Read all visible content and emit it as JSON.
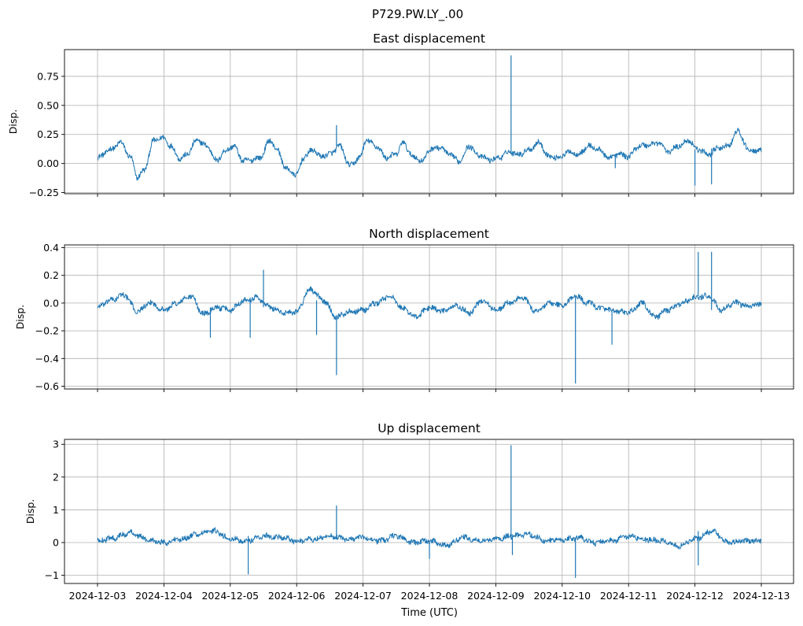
{
  "suptitle": "P729.PW.LY_.00",
  "xlabel": "Time (UTC)",
  "x_ticks": [
    "2024-12-03",
    "2024-12-04",
    "2024-12-05",
    "2024-12-06",
    "2024-12-07",
    "2024-12-08",
    "2024-12-09",
    "2024-12-10",
    "2024-12-11",
    "2024-12-12",
    "2024-12-13"
  ],
  "line_color": "#1f77b4",
  "chart_data": [
    {
      "type": "line",
      "title": "East displacement",
      "ylabel": "Disp.",
      "xlim": [
        "2024-12-02T21:36",
        "2024-12-13T02:24"
      ],
      "ylim": [
        -0.26,
        0.98
      ],
      "yticks": [
        -0.25,
        0.0,
        0.25,
        0.5,
        0.75
      ],
      "ytick_labels": [
        "−0.25",
        "0.00",
        "0.25",
        "0.50",
        "0.75"
      ],
      "grid": true,
      "x_days": [
        0.0,
        0.2,
        0.35,
        0.5,
        0.6,
        0.7,
        0.85,
        1.0,
        1.1,
        1.25,
        1.35,
        1.5,
        1.65,
        1.8,
        1.9,
        2.05,
        2.2,
        2.3,
        2.45,
        2.6,
        2.7,
        2.85,
        3.0,
        3.1,
        3.25,
        3.35,
        3.5,
        3.65,
        3.8,
        3.95,
        4.05,
        4.2,
        4.35,
        4.5,
        4.6,
        4.75,
        4.9,
        5.0,
        5.15,
        5.3,
        5.45,
        5.6,
        5.75,
        5.9,
        6.05,
        6.2,
        6.35,
        6.5,
        6.65,
        6.8,
        6.95,
        7.1,
        7.25,
        7.4,
        7.55,
        7.7,
        7.85,
        8.0,
        8.15,
        8.3,
        8.45,
        8.6,
        8.75,
        8.9,
        9.05,
        9.2,
        9.35,
        9.5,
        9.65,
        9.8,
        9.95,
        10.0
      ],
      "values": [
        0.05,
        0.12,
        0.18,
        0.05,
        -0.12,
        -0.06,
        0.2,
        0.22,
        0.15,
        0.04,
        0.08,
        0.2,
        0.15,
        0.02,
        0.1,
        0.15,
        0.02,
        0.03,
        0.05,
        0.2,
        0.12,
        -0.05,
        -0.1,
        0.05,
        0.12,
        0.06,
        0.08,
        0.15,
        -0.02,
        0.05,
        0.2,
        0.15,
        0.05,
        0.08,
        0.18,
        0.06,
        0.02,
        0.12,
        0.14,
        0.08,
        0.02,
        0.15,
        0.07,
        0.03,
        0.05,
        0.1,
        0.08,
        0.12,
        0.18,
        0.06,
        0.05,
        0.1,
        0.08,
        0.15,
        0.12,
        0.05,
        0.08,
        0.06,
        0.15,
        0.16,
        0.18,
        0.1,
        0.15,
        0.2,
        0.12,
        0.08,
        0.13,
        0.15,
        0.28,
        0.12,
        0.1,
        0.12
      ],
      "spikes": [
        {
          "x": 6.23,
          "y": 0.93
        },
        {
          "x": 9.0,
          "y": -0.19
        },
        {
          "x": 9.25,
          "y": -0.18
        },
        {
          "x": 3.6,
          "y": 0.33
        },
        {
          "x": 7.8,
          "y": -0.04
        }
      ]
    },
    {
      "type": "line",
      "title": "North displacement",
      "ylabel": "Disp.",
      "xlim": [
        "2024-12-02T21:36",
        "2024-12-13T02:24"
      ],
      "ylim": [
        -0.62,
        0.42
      ],
      "yticks": [
        -0.6,
        -0.4,
        -0.2,
        0.0,
        0.2,
        0.4
      ],
      "ytick_labels": [
        "−0.6",
        "−0.4",
        "−0.2",
        "0.0",
        "0.2",
        "0.4"
      ],
      "grid": true,
      "x_days": [
        0.0,
        0.2,
        0.4,
        0.6,
        0.8,
        1.0,
        1.2,
        1.4,
        1.6,
        1.8,
        2.0,
        2.2,
        2.4,
        2.6,
        2.8,
        3.0,
        3.2,
        3.4,
        3.6,
        3.8,
        4.0,
        4.2,
        4.4,
        4.6,
        4.8,
        5.0,
        5.2,
        5.4,
        5.6,
        5.8,
        6.0,
        6.2,
        6.4,
        6.6,
        6.8,
        7.0,
        7.2,
        7.4,
        7.6,
        7.8,
        8.0,
        8.2,
        8.4,
        8.6,
        8.8,
        9.0,
        9.2,
        9.4,
        9.6,
        9.8,
        10.0
      ],
      "values": [
        -0.03,
        0.02,
        0.06,
        -0.06,
        0.0,
        -0.05,
        0.0,
        0.05,
        -0.08,
        -0.03,
        -0.05,
        0.02,
        0.04,
        -0.03,
        -0.07,
        -0.06,
        0.1,
        0.02,
        -0.1,
        -0.06,
        -0.05,
        0.0,
        0.05,
        -0.04,
        -0.1,
        -0.03,
        -0.06,
        -0.02,
        -0.07,
        0.02,
        -0.05,
        0.0,
        0.04,
        -0.06,
        0.0,
        -0.02,
        0.05,
        0.0,
        -0.04,
        -0.06,
        -0.07,
        0.0,
        -0.1,
        -0.05,
        0.0,
        0.04,
        0.05,
        -0.05,
        0.0,
        -0.02,
        -0.01
      ],
      "spikes": [
        {
          "x": 3.6,
          "y": -0.52
        },
        {
          "x": 7.2,
          "y": -0.58
        },
        {
          "x": 9.05,
          "y": 0.37
        },
        {
          "x": 9.25,
          "y": 0.37
        },
        {
          "x": 1.7,
          "y": -0.25
        },
        {
          "x": 2.5,
          "y": 0.24
        },
        {
          "x": 2.3,
          "y": -0.25
        },
        {
          "x": 3.3,
          "y": -0.23
        },
        {
          "x": 7.75,
          "y": -0.3
        }
      ]
    },
    {
      "type": "line",
      "title": "Up displacement",
      "ylabel": "Disp.",
      "xlim": [
        "2024-12-02T21:36",
        "2024-12-13T02:24"
      ],
      "ylim": [
        -1.25,
        3.15
      ],
      "yticks": [
        -1,
        0,
        1,
        2,
        3
      ],
      "ytick_labels": [
        "−1",
        "0",
        "1",
        "2",
        "3"
      ],
      "grid": true,
      "x_days": [
        0.0,
        0.25,
        0.5,
        0.75,
        1.0,
        1.25,
        1.5,
        1.75,
        2.0,
        2.25,
        2.5,
        2.75,
        3.0,
        3.25,
        3.5,
        3.75,
        4.0,
        4.25,
        4.5,
        4.75,
        5.0,
        5.25,
        5.5,
        5.75,
        6.0,
        6.25,
        6.5,
        6.75,
        7.0,
        7.25,
        7.5,
        7.75,
        8.0,
        8.25,
        8.5,
        8.75,
        9.0,
        9.25,
        9.5,
        9.75,
        10.0
      ],
      "values": [
        0.05,
        0.15,
        0.3,
        0.1,
        0.0,
        0.1,
        0.25,
        0.35,
        0.1,
        0.05,
        0.2,
        0.15,
        0.05,
        0.1,
        0.2,
        0.1,
        0.15,
        0.05,
        0.2,
        0.0,
        0.05,
        -0.1,
        0.15,
        0.05,
        0.1,
        0.2,
        0.25,
        0.05,
        0.1,
        0.15,
        0.0,
        0.05,
        0.2,
        0.1,
        0.05,
        -0.1,
        0.1,
        0.35,
        0.0,
        0.05,
        0.05
      ],
      "spikes": [
        {
          "x": 6.23,
          "y": 2.97
        },
        {
          "x": 2.27,
          "y": -0.97
        },
        {
          "x": 7.2,
          "y": -1.08
        },
        {
          "x": 3.6,
          "y": 1.13
        },
        {
          "x": 9.05,
          "y": -0.7
        },
        {
          "x": 5.0,
          "y": -0.5
        },
        {
          "x": 6.25,
          "y": -0.38
        }
      ]
    }
  ]
}
